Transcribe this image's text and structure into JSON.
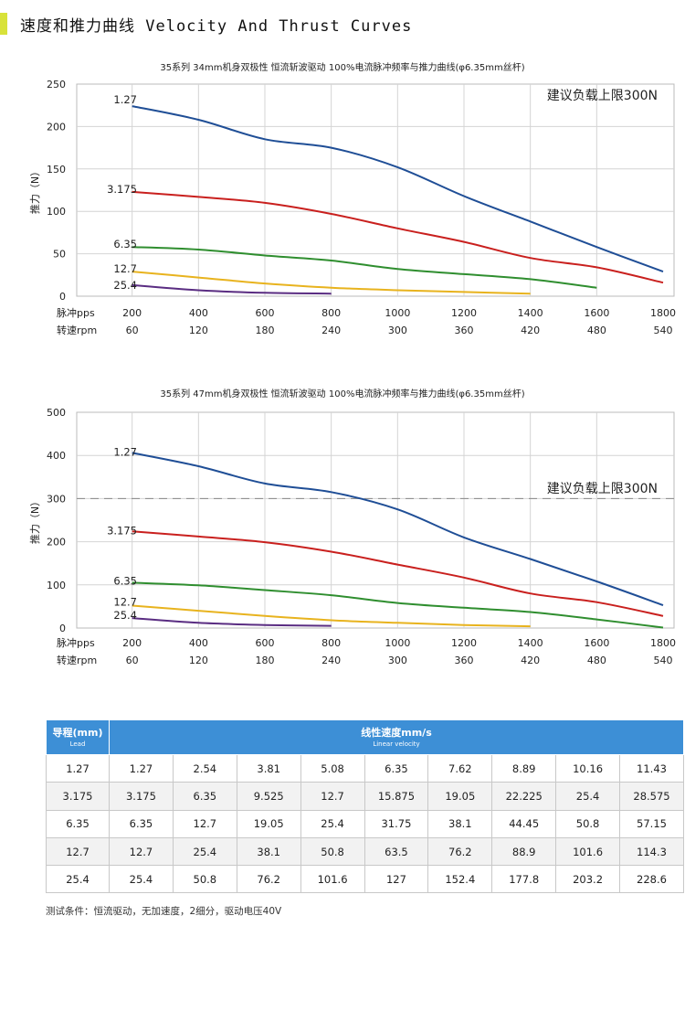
{
  "header": {
    "title": "速度和推力曲线 Velocity And Thrust Curves",
    "accent": "#d8e23a"
  },
  "charts": [
    {
      "title": "35系列 34mm机身双极性 恒流斩波驱动 100%电流脉冲频率与推力曲线(φ6.35mm丝杆)",
      "ylabel": "推力（N）",
      "row_label_pps": "脉冲pps",
      "row_label_rpm": "转速rpm",
      "annotation": "建议负载上限300N"
    },
    {
      "title": "35系列 47mm机身双极性 恒流斩波驱动 100%电流脉冲频率与推力曲线(φ6.35mm丝杆)",
      "ylabel": "推力（N）",
      "row_label_pps": "脉冲pps",
      "row_label_rpm": "转速rpm",
      "annotation": "建议负载上限300N"
    }
  ],
  "chart_data": [
    {
      "type": "line",
      "title": "35系列 34mm机身双极性 恒流斩波驱动 100%电流脉冲频率与推力曲线(φ6.35mm丝杆)",
      "xlabel": "脉冲pps",
      "x2label": "转速rpm",
      "ylabel": "推力（N）",
      "x_ticks": [
        200,
        400,
        600,
        800,
        1000,
        1200,
        1400,
        1600,
        1800
      ],
      "x2_ticks": [
        60,
        120,
        180,
        240,
        300,
        360,
        420,
        480,
        540
      ],
      "y_ticks": [
        0,
        50,
        100,
        150,
        200,
        250
      ],
      "xlim": [
        200,
        1800
      ],
      "ylim": [
        0,
        250
      ],
      "grid": true,
      "annotation": "建议负载上限300N",
      "series": [
        {
          "name": "1.27",
          "color": "#1f4e96",
          "x": [
            200,
            400,
            600,
            800,
            1000,
            1200,
            1400,
            1600,
            1800
          ],
          "y": [
            224,
            208,
            185,
            175,
            152,
            118,
            88,
            58,
            29
          ]
        },
        {
          "name": "3.175",
          "color": "#c9201e",
          "x": [
            200,
            400,
            600,
            800,
            1000,
            1200,
            1400,
            1600,
            1800
          ],
          "y": [
            123,
            117,
            110,
            97,
            80,
            64,
            45,
            34,
            16
          ]
        },
        {
          "name": "6.35",
          "color": "#2f8e2f",
          "x": [
            200,
            400,
            600,
            800,
            1000,
            1200,
            1400,
            1600
          ],
          "y": [
            58,
            55,
            48,
            42,
            32,
            26,
            20,
            10
          ]
        },
        {
          "name": "12.7",
          "color": "#e8b31e",
          "x": [
            200,
            400,
            600,
            800,
            1000,
            1200,
            1400
          ],
          "y": [
            29,
            22,
            15,
            10,
            7,
            5,
            3
          ]
        },
        {
          "name": "25.4",
          "color": "#5a2d82",
          "x": [
            200,
            400,
            600,
            800
          ],
          "y": [
            13,
            7,
            4,
            3
          ]
        }
      ]
    },
    {
      "type": "line",
      "title": "35系列 47mm机身双极性 恒流斩波驱动 100%电流脉冲频率与推力曲线(φ6.35mm丝杆)",
      "xlabel": "脉冲pps",
      "x2label": "转速rpm",
      "ylabel": "推力（N）",
      "x_ticks": [
        200,
        400,
        600,
        800,
        1000,
        1200,
        1400,
        1600,
        1800
      ],
      "x2_ticks": [
        60,
        120,
        180,
        240,
        300,
        360,
        420,
        480,
        540
      ],
      "y_ticks": [
        0,
        100,
        200,
        300,
        400,
        500
      ],
      "xlim": [
        200,
        1800
      ],
      "ylim": [
        0,
        500
      ],
      "grid": true,
      "reference_line": 300,
      "annotation": "建议负载上限300N",
      "series": [
        {
          "name": "1.27",
          "color": "#1f4e96",
          "x": [
            200,
            400,
            600,
            800,
            1000,
            1200,
            1400,
            1600,
            1800
          ],
          "y": [
            406,
            375,
            335,
            315,
            275,
            210,
            160,
            108,
            53
          ]
        },
        {
          "name": "3.175",
          "color": "#c9201e",
          "x": [
            200,
            400,
            600,
            800,
            1000,
            1200,
            1400,
            1600,
            1800
          ],
          "y": [
            224,
            212,
            199,
            177,
            147,
            117,
            80,
            60,
            28
          ]
        },
        {
          "name": "6.35",
          "color": "#2f8e2f",
          "x": [
            200,
            400,
            600,
            800,
            1000,
            1200,
            1400,
            1600,
            1800
          ],
          "y": [
            105,
            99,
            88,
            76,
            58,
            47,
            37,
            20,
            1
          ]
        },
        {
          "name": "12.7",
          "color": "#e8b31e",
          "x": [
            200,
            400,
            600,
            800,
            1000,
            1200,
            1400
          ],
          "y": [
            52,
            40,
            28,
            18,
            12,
            7,
            4
          ]
        },
        {
          "name": "25.4",
          "color": "#5a2d82",
          "x": [
            200,
            400,
            600,
            800
          ],
          "y": [
            23,
            12,
            7,
            5
          ]
        }
      ]
    }
  ],
  "table": {
    "header_lead": "导程(mm)",
    "header_lead_en": "Lead",
    "header_speed": "线性速度mm/s",
    "header_speed_en": "Linear velocity",
    "header_color": "#3d8fd6",
    "rows": [
      [
        "1.27",
        "1.27",
        "2.54",
        "3.81",
        "5.08",
        "6.35",
        "7.62",
        "8.89",
        "10.16",
        "11.43"
      ],
      [
        "3.175",
        "3.175",
        "6.35",
        "9.525",
        "12.7",
        "15.875",
        "19.05",
        "22.225",
        "25.4",
        "28.575"
      ],
      [
        "6.35",
        "6.35",
        "12.7",
        "19.05",
        "25.4",
        "31.75",
        "38.1",
        "44.45",
        "50.8",
        "57.15"
      ],
      [
        "12.7",
        "12.7",
        "25.4",
        "38.1",
        "50.8",
        "63.5",
        "76.2",
        "88.9",
        "101.6",
        "114.3"
      ],
      [
        "25.4",
        "25.4",
        "50.8",
        "76.2",
        "101.6",
        "127",
        "152.4",
        "177.8",
        "203.2",
        "228.6"
      ]
    ]
  },
  "note": "测试条件：恒流驱动，无加速度，2细分，驱动电压40V"
}
